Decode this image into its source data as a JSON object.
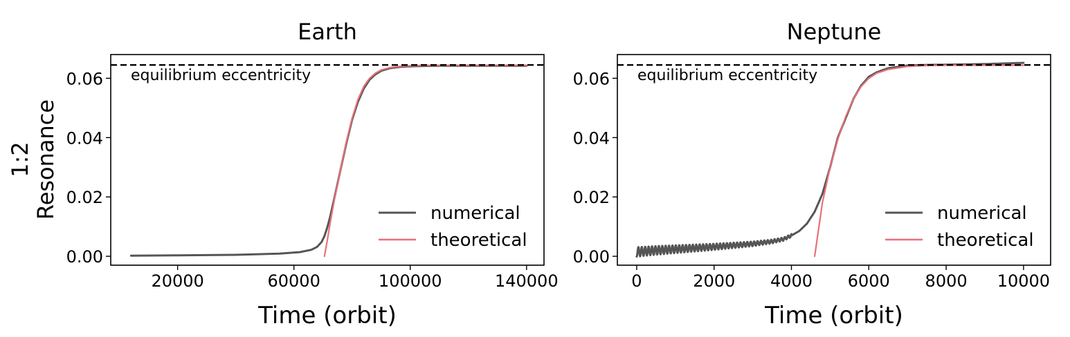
{
  "figure": {
    "ylabel_line1": "1:2",
    "ylabel_line2": "Resonance"
  },
  "colors": {
    "numerical": "#555555",
    "theoretical": "#e8707a",
    "equilibrium": "#000000"
  },
  "chart_data": [
    {
      "type": "line",
      "title": "Earth",
      "xlabel": "Time (orbit)",
      "ylabel": "",
      "xlim": [
        -3000,
        146000
      ],
      "ylim": [
        -0.003,
        0.068
      ],
      "xticks": [
        20000,
        60000,
        100000,
        140000
      ],
      "xtick_labels": [
        "20000",
        "60000",
        "100000",
        "140000"
      ],
      "yticks": [
        0.0,
        0.02,
        0.04,
        0.06
      ],
      "ytick_labels": [
        "0.00",
        "0.02",
        "0.04",
        "0.06"
      ],
      "equilibrium_eccentricity": 0.0645,
      "annotation": "equilibrium eccentricity",
      "legend_location": "lower-right",
      "series": [
        {
          "name": "numerical",
          "x": [
            4000,
            20000,
            40000,
            55000,
            62000,
            66000,
            68000,
            69500,
            70500,
            71500,
            72500,
            74000,
            76000,
            78000,
            80000,
            82000,
            84000,
            86000,
            88000,
            90000,
            93000,
            97000,
            102000,
            110000,
            120000,
            130000,
            140000
          ],
          "y": [
            0.0002,
            0.0003,
            0.0005,
            0.0009,
            0.0014,
            0.0022,
            0.0032,
            0.0048,
            0.0068,
            0.0098,
            0.0135,
            0.02,
            0.029,
            0.038,
            0.046,
            0.052,
            0.0565,
            0.0595,
            0.0613,
            0.0625,
            0.0634,
            0.0639,
            0.0641,
            0.0642,
            0.0642,
            0.0642,
            0.0642
          ]
        },
        {
          "name": "theoretical",
          "x": [
            70500,
            71500,
            72500,
            74000,
            76000,
            78000,
            80000,
            82000,
            84000,
            86000,
            88000,
            90000,
            93000,
            97000,
            102000,
            110000,
            120000,
            130000,
            140000
          ],
          "y": [
            0.0,
            0.0055,
            0.0115,
            0.0195,
            0.029,
            0.0385,
            0.0465,
            0.0528,
            0.0572,
            0.06,
            0.0617,
            0.0628,
            0.0636,
            0.0641,
            0.0643,
            0.0644,
            0.0644,
            0.0644,
            0.0644
          ]
        }
      ]
    },
    {
      "type": "line",
      "title": "Neptune",
      "xlabel": "Time (orbit)",
      "ylabel": "",
      "xlim": [
        -500,
        10700
      ],
      "ylim": [
        -0.003,
        0.068
      ],
      "xticks": [
        0,
        2000,
        4000,
        6000,
        8000,
        10000
      ],
      "xtick_labels": [
        "0",
        "2000",
        "4000",
        "6000",
        "8000",
        "10000"
      ],
      "yticks": [
        0.0,
        0.02,
        0.04,
        0.06
      ],
      "ytick_labels": [
        "0.00",
        "0.02",
        "0.04",
        "0.06"
      ],
      "equilibrium_eccentricity": 0.0645,
      "annotation": "equilibrium eccentricity",
      "legend_location": "lower-right",
      "series": [
        {
          "name": "numerical",
          "oscillation": {
            "x_start": 0,
            "x_end": 4000,
            "period": 88,
            "amplitude_start": 0.0016,
            "amplitude_end": 0.0005
          },
          "x": [
            0,
            500,
            1000,
            1500,
            2000,
            2500,
            3000,
            3500,
            3800,
            4000,
            4200,
            4400,
            4600,
            4800,
            5000,
            5200,
            5400,
            5600,
            5800,
            6000,
            6200,
            6500,
            7000,
            7500,
            8000,
            8500,
            9000,
            9500,
            10000
          ],
          "y": [
            0.0015,
            0.002,
            0.0024,
            0.0028,
            0.0032,
            0.0037,
            0.0042,
            0.005,
            0.0058,
            0.007,
            0.0085,
            0.011,
            0.015,
            0.021,
            0.03,
            0.04,
            0.0465,
            0.053,
            0.0575,
            0.0605,
            0.062,
            0.0634,
            0.0643,
            0.0645,
            0.0646,
            0.0647,
            0.0648,
            0.065,
            0.0652
          ]
        },
        {
          "name": "theoretical",
          "x": [
            4600,
            4800,
            5000,
            5200,
            5400,
            5600,
            5800,
            6000,
            6200,
            6500,
            7000,
            7500,
            8000,
            8500,
            9000,
            9500,
            10000
          ],
          "y": [
            0.0,
            0.018,
            0.03,
            0.0395,
            0.047,
            0.053,
            0.0572,
            0.06,
            0.0617,
            0.063,
            0.064,
            0.0643,
            0.0644,
            0.0644,
            0.0644,
            0.0644,
            0.0644
          ]
        }
      ]
    }
  ]
}
